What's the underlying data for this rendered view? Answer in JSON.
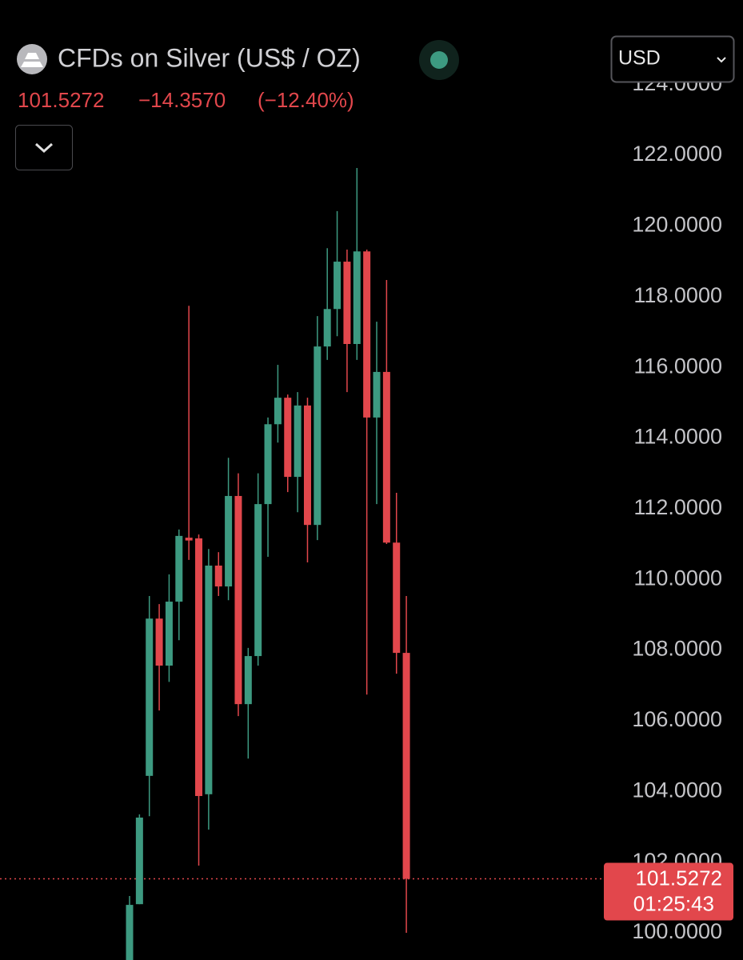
{
  "header": {
    "title": "CFDs on Silver (US$ / OZ)",
    "price": "101.5272",
    "change": "−14.3570",
    "change_percent": "(−12.40%)",
    "currency": "USD"
  },
  "chart_data": {
    "type": "candlestick",
    "up_color": "#3d9a81",
    "down_color": "#e2474c",
    "ylim": [
      99.23,
      124.13
    ],
    "yticks": [
      {
        "value": 100,
        "label": "100.0000"
      },
      {
        "value": 102,
        "label": "102.0000"
      },
      {
        "value": 104,
        "label": "104.0000"
      },
      {
        "value": 106,
        "label": "106.0000"
      },
      {
        "value": 108,
        "label": "108.0000"
      },
      {
        "value": 110,
        "label": "110.0000"
      },
      {
        "value": 112,
        "label": "112.0000"
      },
      {
        "value": 114,
        "label": "114.0000"
      },
      {
        "value": 116,
        "label": "116.0000"
      },
      {
        "value": 118,
        "label": "118.0000"
      },
      {
        "value": 120,
        "label": "120.0000"
      },
      {
        "value": 122,
        "label": "122.0000"
      },
      {
        "value": 124,
        "label": "124.0000"
      }
    ],
    "open": [
      98.5,
      100.81,
      104.44,
      108.89,
      107.56,
      109.37,
      111.18,
      111.16,
      103.92,
      110.39,
      109.8,
      112.36,
      106.47,
      107.83,
      112.13,
      114.39,
      115.14,
      112.9,
      114.92,
      111.54,
      116.59,
      117.65,
      118.99,
      116.66,
      119.28,
      114.58,
      115.87,
      111.04,
      107.92
    ],
    "high": [
      101.04,
      103.35,
      109.53,
      109.3,
      110.14,
      111.41,
      117.74,
      111.27,
      110.86,
      110.77,
      113.44,
      113.0,
      108.06,
      113.0,
      114.58,
      116.07,
      115.23,
      115.3,
      115.14,
      117.45,
      119.37,
      120.42,
      119.33,
      121.64,
      119.33,
      117.29,
      118.47,
      112.45,
      109.53
    ],
    "low": [
      98.0,
      100.81,
      103.3,
      106.29,
      107.1,
      108.28,
      110.55,
      101.9,
      102.92,
      109.53,
      109.41,
      106.13,
      104.93,
      107.56,
      110.64,
      113.87,
      112.47,
      111.9,
      110.48,
      111.11,
      116.21,
      116.88,
      115.3,
      116.21,
      106.74,
      112.13,
      111.0,
      107.33,
      100.0
    ],
    "close": [
      100.79,
      103.26,
      108.89,
      107.56,
      109.37,
      111.23,
      111.1,
      103.87,
      110.39,
      109.8,
      112.36,
      106.47,
      107.83,
      112.13,
      114.39,
      115.14,
      112.9,
      114.92,
      111.54,
      116.59,
      117.65,
      118.99,
      116.66,
      119.28,
      114.58,
      115.87,
      111.04,
      107.92,
      101.5272
    ],
    "last_price": {
      "value": 101.5272,
      "label": "101.5272"
    },
    "countdown": "01:25:43"
  }
}
